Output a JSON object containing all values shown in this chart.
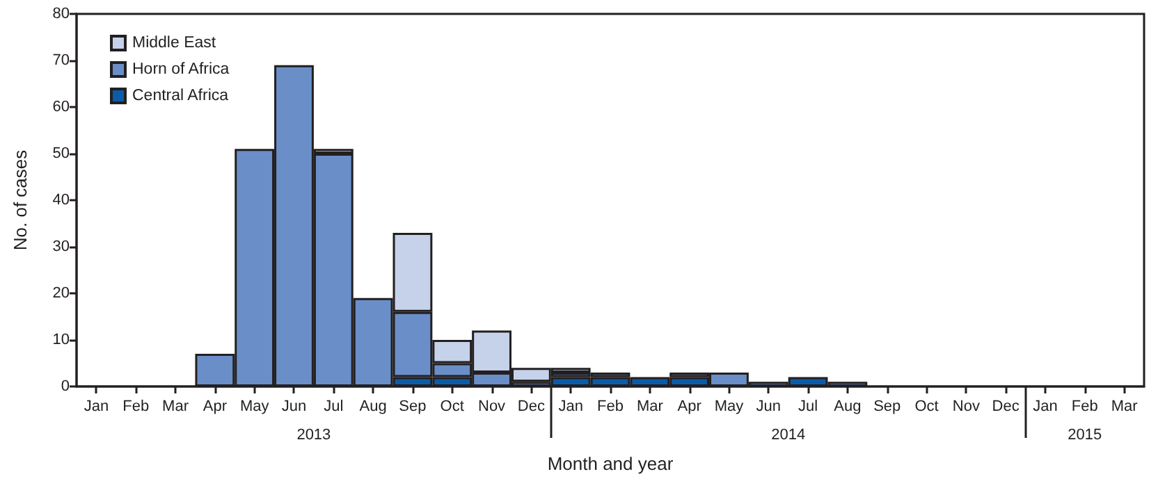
{
  "chart_data": {
    "type": "bar",
    "stacked": true,
    "xlabel": "Month and year",
    "ylabel": "No. of cases",
    "categories": [
      "Jan",
      "Feb",
      "Mar",
      "Apr",
      "May",
      "Jun",
      "Jul",
      "Aug",
      "Sep",
      "Oct",
      "Nov",
      "Dec",
      "Jan",
      "Feb",
      "Mar",
      "Apr",
      "May",
      "Jun",
      "Jul",
      "Aug",
      "Sep",
      "Oct",
      "Nov",
      "Dec",
      "Jan",
      "Feb",
      "Mar"
    ],
    "series": [
      {
        "name": "Central Africa",
        "color": "#0b5ca8",
        "values": [
          0,
          0,
          0,
          0,
          0,
          0,
          0,
          0,
          2,
          2,
          0,
          0,
          2,
          2,
          2,
          2,
          0,
          0,
          2,
          0,
          0,
          0,
          0,
          0,
          0,
          0,
          0
        ]
      },
      {
        "name": "Horn of Africa",
        "color": "#6a8fc8",
        "values": [
          0,
          0,
          0,
          7,
          51,
          69,
          50,
          19,
          14,
          3,
          3,
          1,
          1,
          1,
          0,
          1,
          3,
          1,
          0,
          1,
          0,
          0,
          0,
          0,
          0,
          0,
          0
        ]
      },
      {
        "name": "Middle East",
        "color": "#c6d2ea",
        "values": [
          0,
          0,
          0,
          0,
          0,
          0,
          1,
          0,
          17,
          5,
          9,
          3,
          1,
          0,
          0,
          0,
          0,
          0,
          0,
          0,
          0,
          0,
          0,
          0,
          0,
          0,
          0
        ]
      }
    ],
    "ylim": [
      0,
      80
    ],
    "yticks": [
      0,
      10,
      20,
      30,
      40,
      50,
      60,
      70,
      80
    ],
    "grid": false,
    "legend": "top left",
    "annotations": [
      "2013",
      "2014",
      "2015"
    ]
  }
}
